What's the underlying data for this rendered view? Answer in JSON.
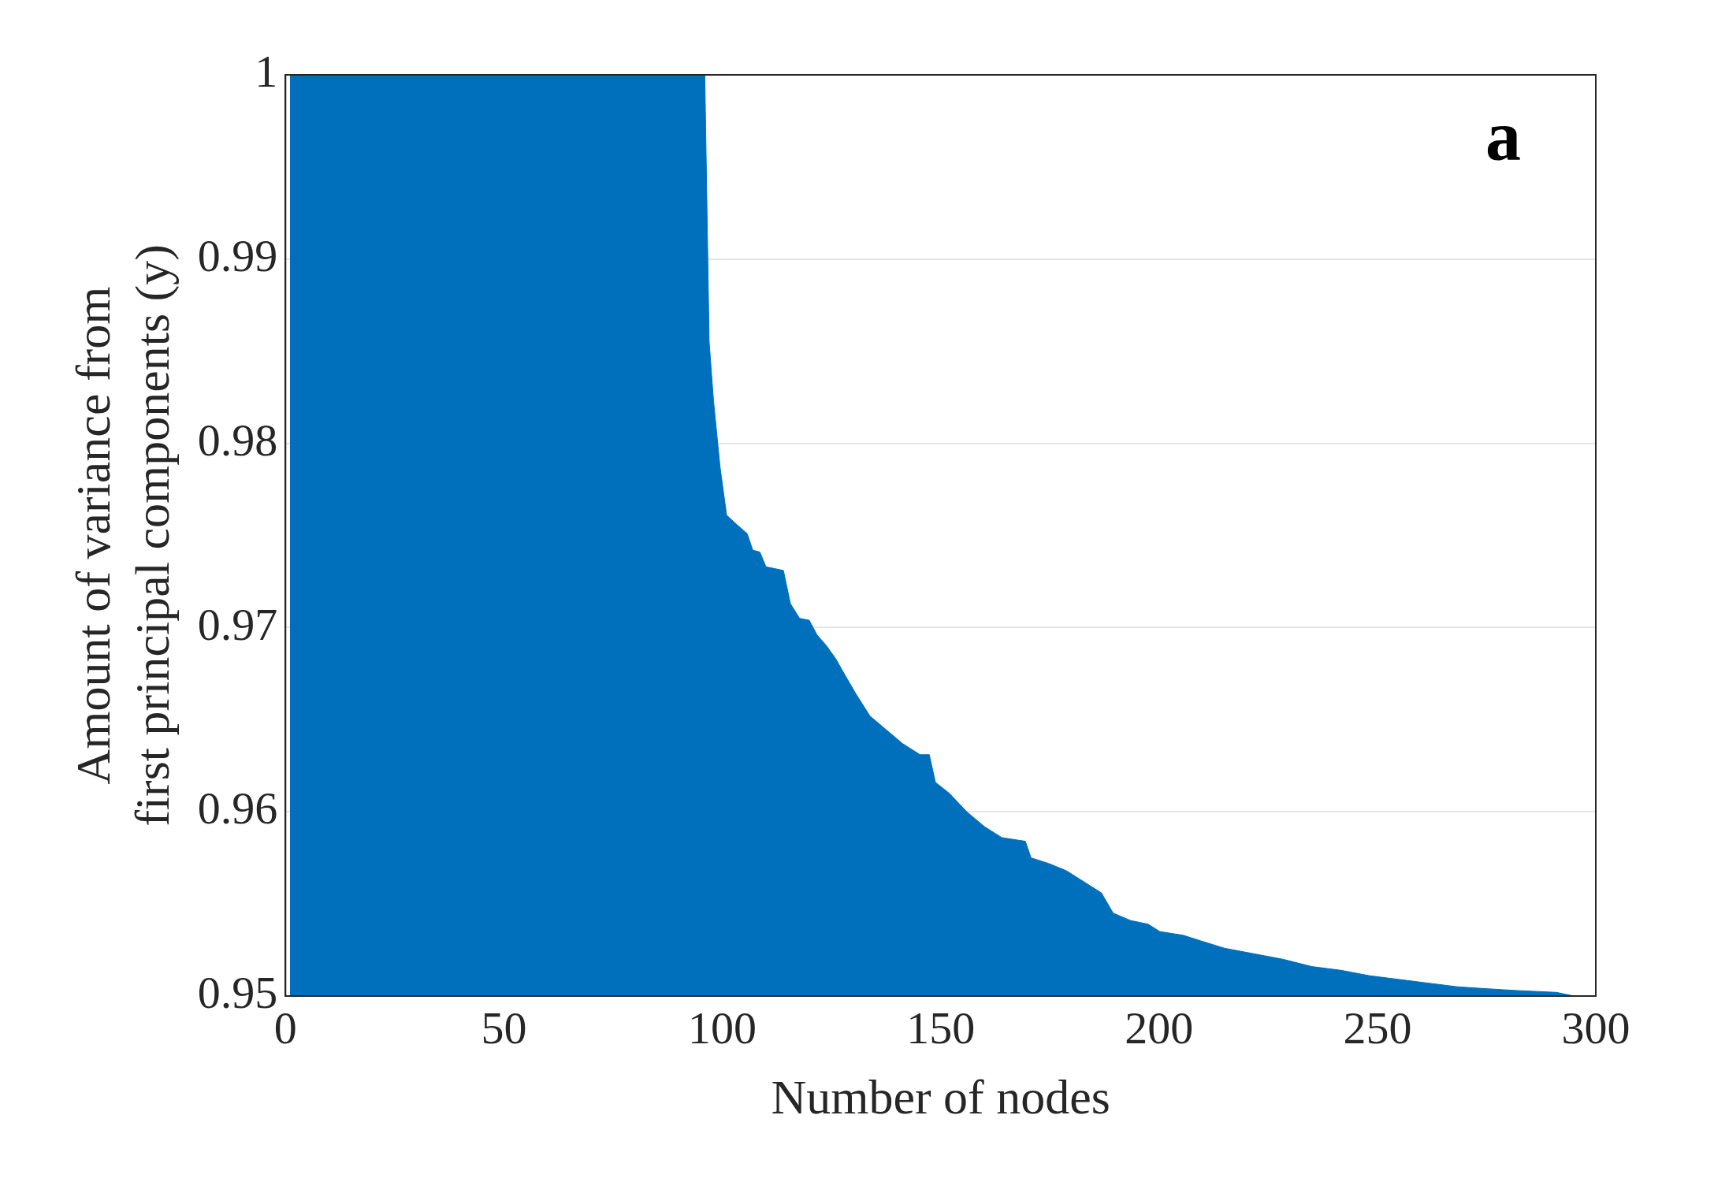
{
  "chart_data": {
    "type": "area",
    "xlabel": "Number of nodes",
    "ylabel": "Amount of variance from\nfirst principal components (y)",
    "annotations": [
      "a"
    ],
    "series": [
      {
        "color": "#0070bd",
        "x": [
          1,
          96,
          97,
          98,
          99.5,
          101,
          103.3,
          105.7,
          107,
          108.6,
          110,
          114,
          115.6,
          117.7,
          119.9,
          121.7,
          123.9,
          126,
          127.9,
          130.6,
          133.8,
          137.3,
          141.3,
          145.3,
          147.4,
          148.8,
          152,
          156,
          160,
          164,
          169.4,
          170.7,
          174.7,
          178.8,
          182.8,
          186.8,
          189.5,
          193.5,
          197.5,
          200.2,
          205.5,
          209.5,
          214.9,
          221.6,
          228.3,
          235,
          241.6,
          248.3,
          255,
          261.7,
          268.4,
          275,
          281.8,
          291,
          295
        ],
        "values": [
          1,
          1,
          0.9855,
          0.9823,
          0.9787,
          0.9761,
          0.9756,
          0.9751,
          0.9742,
          0.9741,
          0.9733,
          0.9731,
          0.9713,
          0.9705,
          0.9704,
          0.9696,
          0.969,
          0.9683,
          0.9675,
          0.9664,
          0.9652,
          0.9645,
          0.9637,
          0.9631,
          0.9631,
          0.9616,
          0.961,
          0.96,
          0.9592,
          0.9586,
          0.9584,
          0.9575,
          0.9572,
          0.9568,
          0.9562,
          0.9556,
          0.9545,
          0.9541,
          0.9539,
          0.9535,
          0.9533,
          0.953,
          0.9526,
          0.9523,
          0.952,
          0.9516,
          0.9514,
          0.9511,
          0.9509,
          0.9507,
          0.9505,
          0.9504,
          0.9503,
          0.9502,
          0.95
        ]
      }
    ],
    "xlim": [
      0,
      300
    ],
    "xticks": [
      0,
      50,
      100,
      150,
      200,
      250,
      300
    ],
    "ylim": [
      0.95,
      1
    ],
    "yticks": [
      0.95,
      0.96,
      0.97,
      0.98,
      0.99,
      1
    ],
    "grid": "y",
    "legend": false,
    "marker": "none"
  }
}
